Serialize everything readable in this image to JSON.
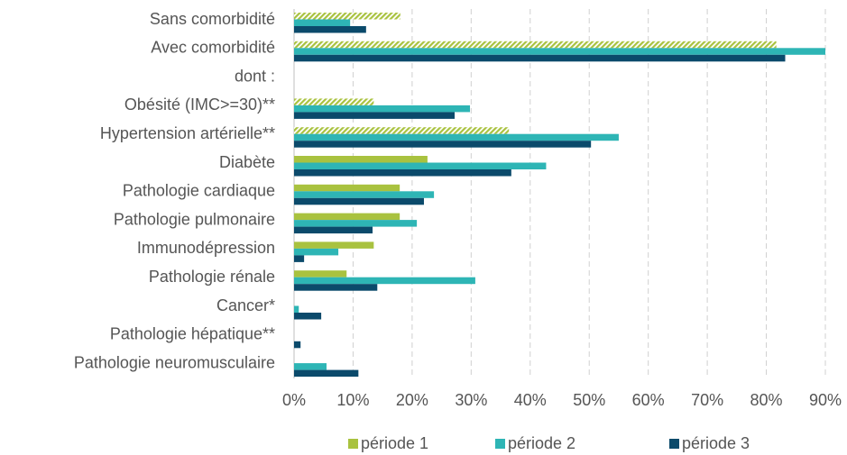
{
  "chart_data": {
    "type": "hbar",
    "categories": [
      "Sans comorbidité",
      "Avec comorbidité",
      "dont :",
      "Obésité (IMC>=30)**",
      "Hypertension artérielle**",
      "Diabète",
      "Pathologie cardiaque",
      "Pathologie pulmonaire",
      "Immunodépression",
      "Pathologie rénale",
      "Cancer*",
      "Pathologie hépatique**",
      "Pathologie neuromusculaire"
    ],
    "series": [
      {
        "name": "période 1",
        "color": "#a9c23f",
        "values": [
          18.0,
          81.7,
          null,
          13.5,
          36.4,
          22.6,
          17.9,
          17.9,
          13.5,
          8.9,
          0,
          0,
          0
        ],
        "hatched": [
          true,
          true,
          false,
          true,
          true,
          false,
          false,
          false,
          false,
          false,
          false,
          false,
          false
        ]
      },
      {
        "name": "période 2",
        "color": "#2eb5b5",
        "values": [
          9.5,
          90.0,
          null,
          29.8,
          55.0,
          42.7,
          23.7,
          20.8,
          7.5,
          30.7,
          0.8,
          0,
          5.5
        ]
      },
      {
        "name": "période 3",
        "color": "#0b4a6b",
        "values": [
          12.2,
          83.2,
          null,
          27.2,
          50.3,
          36.8,
          22.0,
          13.3,
          1.7,
          14.1,
          4.6,
          1.1,
          10.9
        ]
      }
    ],
    "xlim": [
      0,
      90
    ],
    "xticks": [
      {
        "value": 0,
        "label": "0%"
      },
      {
        "value": 10,
        "label": "10%"
      },
      {
        "value": 20,
        "label": "20%"
      },
      {
        "value": 30,
        "label": "30%"
      },
      {
        "value": 40,
        "label": "40%"
      },
      {
        "value": 50,
        "label": "50%"
      },
      {
        "value": 60,
        "label": "60%"
      },
      {
        "value": 70,
        "label": "70%"
      },
      {
        "value": 80,
        "label": "80%"
      },
      {
        "value": 90,
        "label": "90%"
      }
    ],
    "grid": true,
    "legend": "bottom"
  }
}
